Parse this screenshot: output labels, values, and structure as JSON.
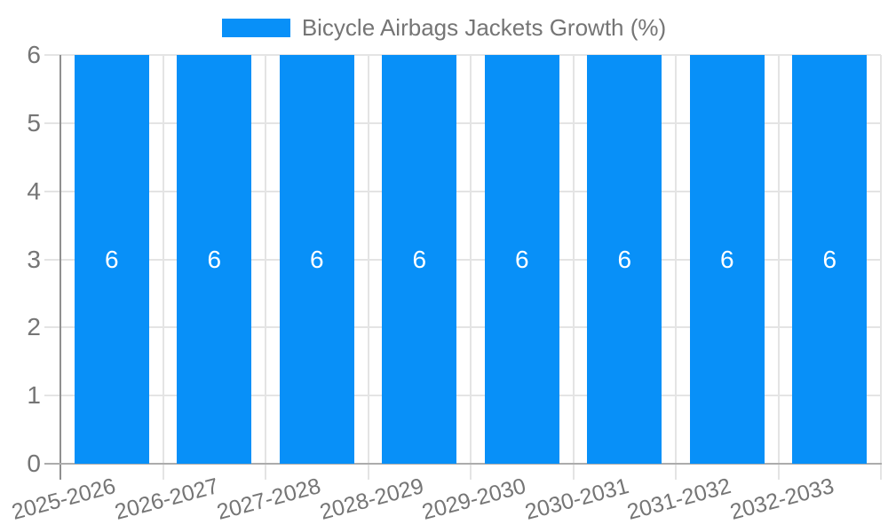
{
  "legend": {
    "label": "Bicycle Airbags Jackets Growth (%)",
    "swatch_color": "#0890F8"
  },
  "chart_data": {
    "type": "bar",
    "title": "Bicycle Airbags Jackets Growth (%)",
    "categories": [
      "2025-2026",
      "2026-2027",
      "2027-2028",
      "2028-2029",
      "2029-2030",
      "2030-2031",
      "2031-2032",
      "2032-2033"
    ],
    "values": [
      6,
      6,
      6,
      6,
      6,
      6,
      6,
      6
    ],
    "value_labels": [
      "6",
      "6",
      "6",
      "6",
      "6",
      "6",
      "6",
      "6"
    ],
    "xlabel": "",
    "ylabel": "",
    "ylim": [
      0,
      6
    ],
    "yticks": [
      0,
      1,
      2,
      3,
      4,
      5,
      6
    ],
    "grid": true,
    "legend_position": "top-center",
    "x_tick_rotation_deg": -15,
    "colors": {
      "bar": "#0890F8",
      "value_label": "#FFFFFF",
      "axis_text": "#757575",
      "grid_line": "#E4E4E4",
      "x_axis_line": "#ACACAC",
      "y_axis_line": "#8F8F8F",
      "background": "#FFFFFF"
    }
  }
}
